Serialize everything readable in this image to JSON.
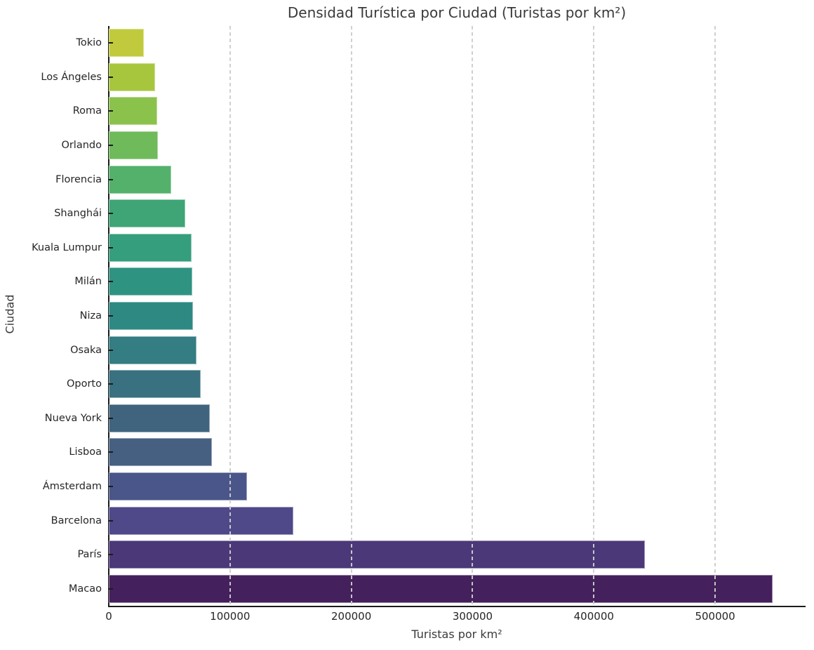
{
  "chart_data": {
    "type": "bar",
    "orientation": "horizontal",
    "title": "Densidad Turística por Ciudad (Turistas por km²)",
    "xlabel": "Turistas por km²",
    "ylabel": "Ciudad",
    "xlim": [
      0,
      574000
    ],
    "x_ticks": [
      0,
      100000,
      200000,
      300000,
      400000,
      500000
    ],
    "x_tick_labels": [
      "0",
      "100000",
      "200000",
      "300000",
      "400000",
      "500000"
    ],
    "grid": "vertical-dashed-over-bars",
    "legend": "none",
    "categories": [
      "Tokio",
      "Los Ángeles",
      "Roma",
      "Orlando",
      "Florencia",
      "Shanghái",
      "Kuala Lumpur",
      "Milán",
      "Niza",
      "Osaka",
      "Oporto",
      "Nueva York",
      "Lisboa",
      "Ámsterdam",
      "Barcelona",
      "París",
      "Macao"
    ],
    "values": [
      28900,
      38200,
      40100,
      40700,
      51500,
      62900,
      68200,
      69000,
      69600,
      72100,
      75800,
      83100,
      84800,
      114100,
      152300,
      442200,
      547300
    ],
    "bar_colors": [
      "#c1ca3c",
      "#a7c63e",
      "#8bc24b",
      "#6fba5b",
      "#54b16c",
      "#3fa576",
      "#359e7d",
      "#2f9381",
      "#2f8983",
      "#347d82",
      "#397180",
      "#41647e",
      "#456081",
      "#4a5589",
      "#4f4889",
      "#4b3878",
      "#44205c"
    ],
    "colormap": "viridis",
    "spine_color": "#1c1c1c",
    "gridline_color": "#cecece",
    "text_color": "#262626"
  }
}
